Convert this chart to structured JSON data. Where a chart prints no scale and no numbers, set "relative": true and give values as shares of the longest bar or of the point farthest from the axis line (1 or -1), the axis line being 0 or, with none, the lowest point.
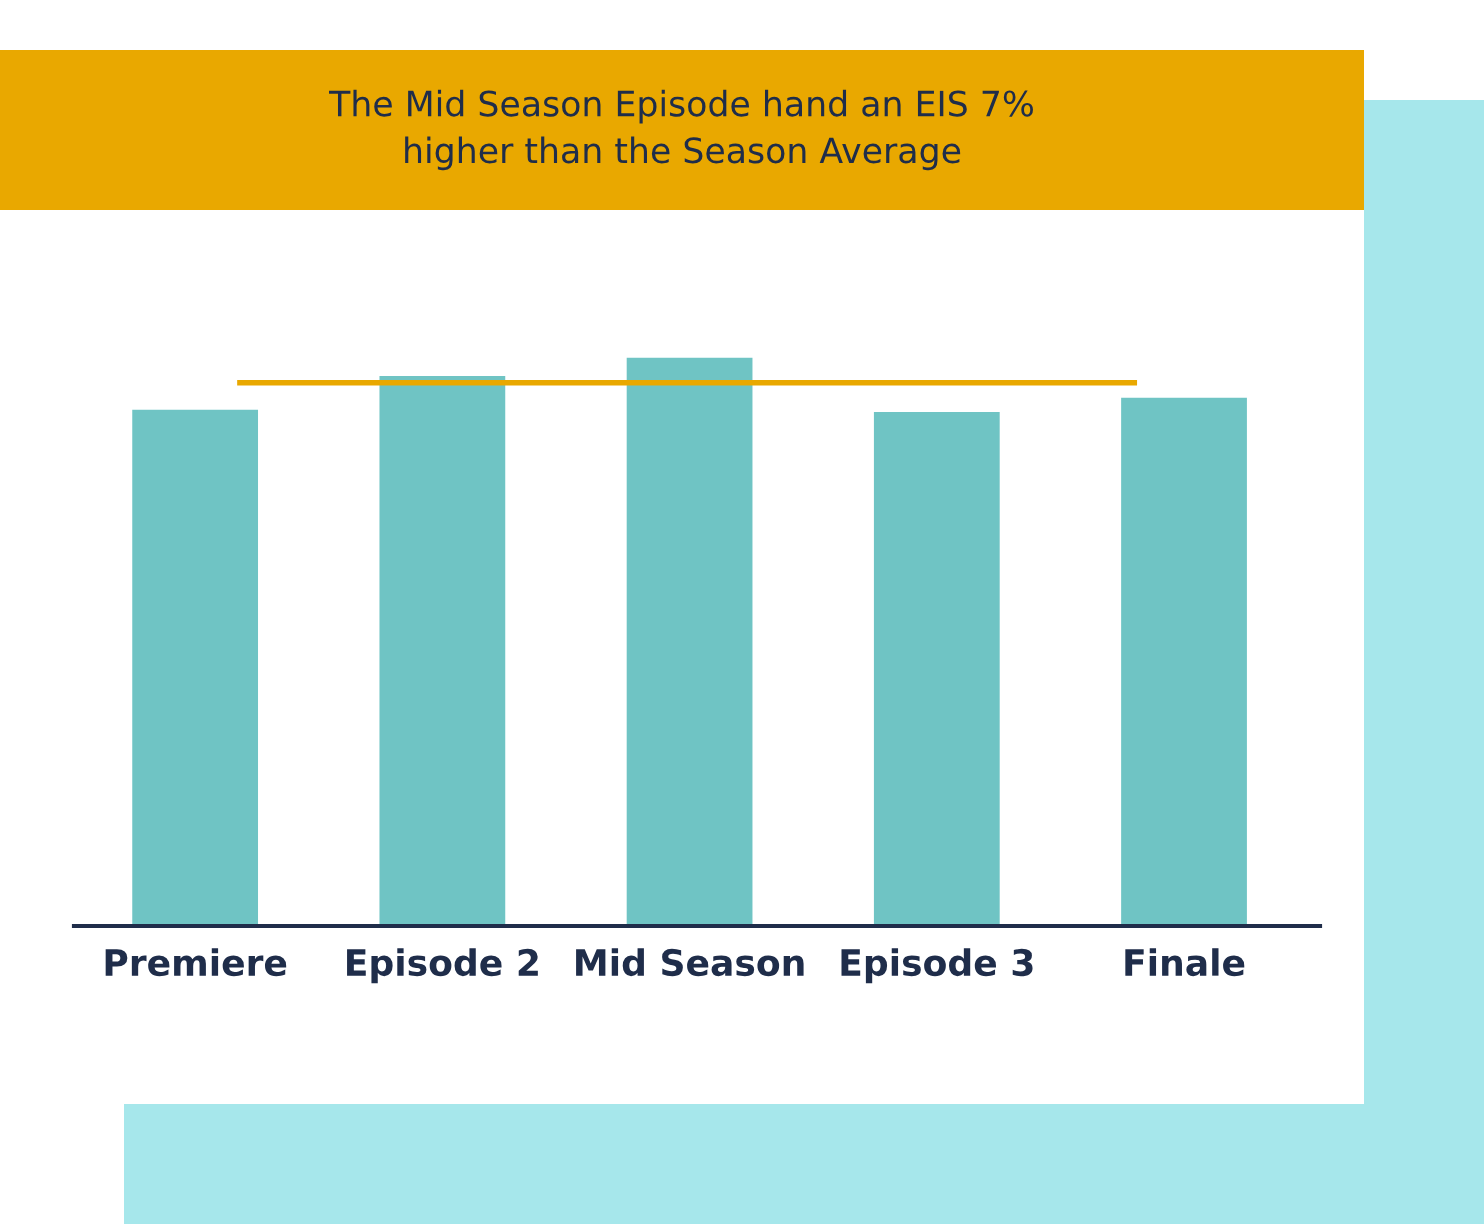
{
  "chart_data": {
    "type": "bar",
    "relative": true,
    "title": "The Mid Season Episode hand an EIS 7%\nhigher than the Season Average",
    "categories": [
      "Premiere",
      "Episode 2",
      "Mid Season",
      "Episode 3",
      "Finale"
    ],
    "values": [
      0.909,
      0.968,
      1,
      0.905,
      0.93
    ],
    "color": "#6fc4c4",
    "ref_lines": [
      {
        "axis": "y",
        "value": 0.954,
        "color": "#e9a800",
        "line_style": "solid"
      }
    ],
    "grid": false,
    "legend": false
  }
}
